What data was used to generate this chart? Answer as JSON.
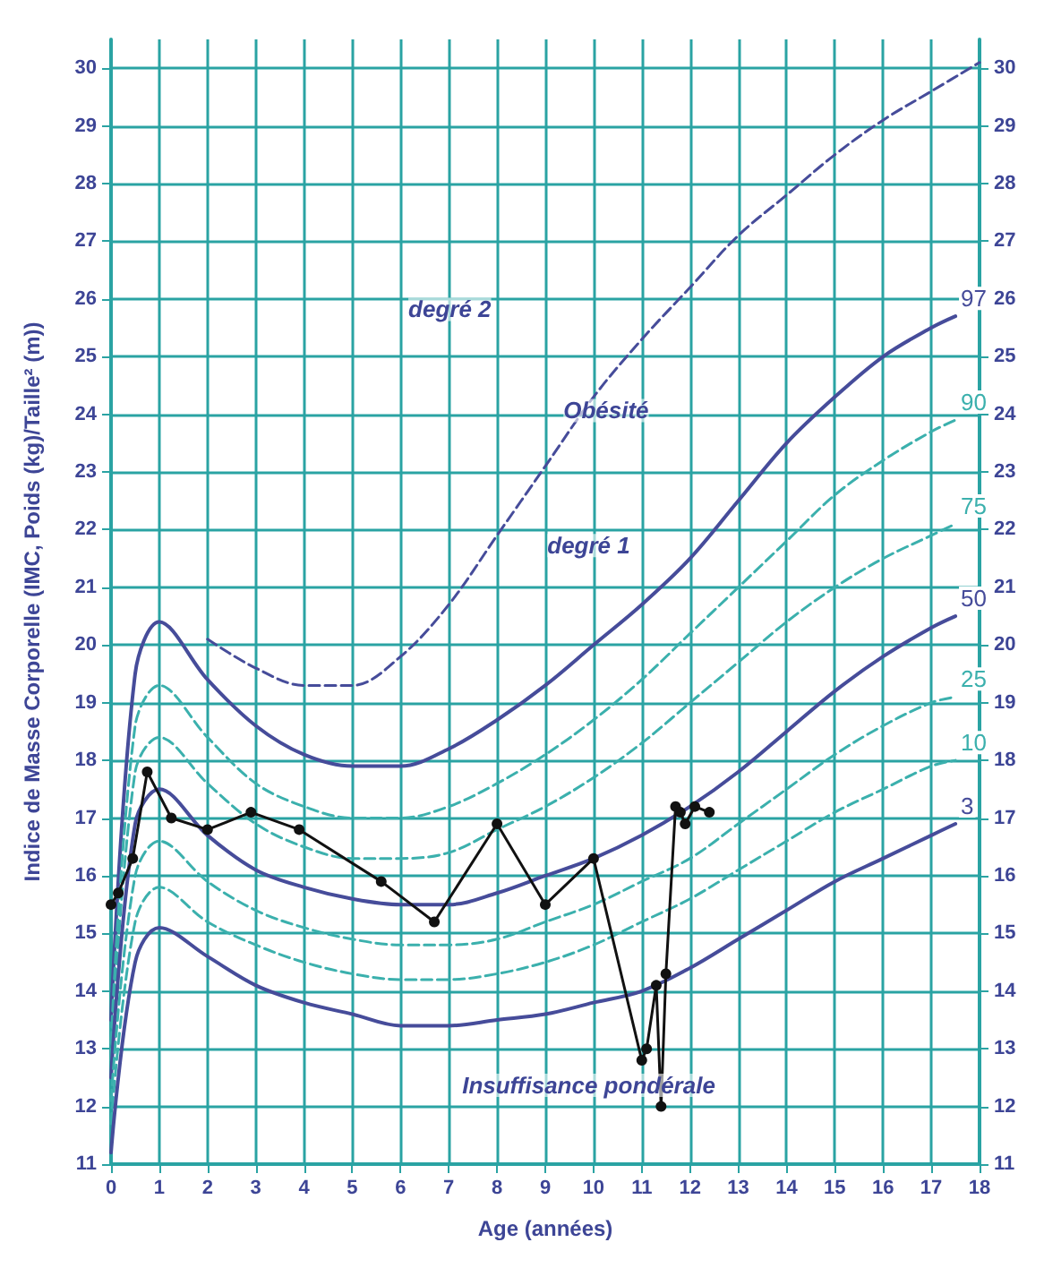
{
  "chart_data": {
    "type": "line",
    "xlabel": "Age (années)",
    "ylabel": "Indice de Masse Corporelle (IMC, Poids (kg)/Taille² (m))",
    "xlim": [
      0,
      18
    ],
    "xticks": [
      0,
      1,
      2,
      3,
      4,
      5,
      6,
      7,
      8,
      9,
      10,
      11,
      12,
      13,
      14,
      15,
      16,
      17,
      18
    ],
    "ylim": [
      11,
      30.5
    ],
    "yticks": [
      11,
      12,
      13,
      14,
      15,
      16,
      17,
      18,
      19,
      20,
      21,
      22,
      23,
      24,
      25,
      26,
      27,
      28,
      29,
      30
    ],
    "y2lim": [
      11,
      30.5
    ],
    "y2ticks": [
      11,
      12,
      13,
      14,
      15,
      16,
      17,
      18,
      19,
      20,
      21,
      22,
      23,
      24,
      25,
      26,
      27,
      28,
      29,
      30
    ],
    "grid": true,
    "marker": "none",
    "annotations": [
      "degré 2",
      "Obésité",
      "degré 1",
      "Insuffisance pondérale"
    ],
    "series": [
      {
        "name": "97",
        "color": "#464c9a",
        "line_style": "solid",
        "x": [
          0,
          0.5,
          1,
          2,
          3,
          4,
          5,
          6,
          7,
          8,
          9,
          10,
          11,
          12,
          13,
          14,
          15,
          16,
          17,
          17.5
        ],
        "values": [
          13.5,
          19.5,
          20.4,
          19.4,
          18.6,
          18.1,
          17.9,
          17.9,
          18.2,
          18.7,
          19.3,
          20.0,
          20.7,
          21.5,
          22.5,
          23.5,
          24.3,
          25.0,
          25.5,
          25.7
        ]
      },
      {
        "name": "90",
        "color": "#3bb0ad",
        "line_style": "dashed",
        "x": [
          0,
          0.5,
          1,
          2,
          3,
          4,
          5,
          6,
          7,
          8,
          9,
          10,
          11,
          12,
          13,
          14,
          15,
          16,
          17,
          17.5
        ],
        "values": [
          13.1,
          18.6,
          19.3,
          18.4,
          17.6,
          17.2,
          17.0,
          17.0,
          17.2,
          17.6,
          18.1,
          18.7,
          19.4,
          20.2,
          21.0,
          21.8,
          22.6,
          23.2,
          23.7,
          23.9
        ]
      },
      {
        "name": "75",
        "color": "#3bb0ad",
        "line_style": "dashed",
        "x": [
          0,
          0.5,
          1,
          2,
          3,
          4,
          5,
          6,
          7,
          8,
          9,
          10,
          11,
          12,
          13,
          14,
          15,
          16,
          17,
          17.5
        ],
        "values": [
          12.8,
          17.8,
          18.4,
          17.6,
          16.9,
          16.5,
          16.3,
          16.3,
          16.4,
          16.8,
          17.2,
          17.7,
          18.3,
          19.0,
          19.7,
          20.4,
          21.0,
          21.5,
          21.9,
          22.1
        ]
      },
      {
        "name": "50",
        "color": "#464c9a",
        "line_style": "solid",
        "x": [
          0,
          0.5,
          1,
          2,
          3,
          4,
          5,
          6,
          7,
          8,
          9,
          10,
          11,
          12,
          13,
          14,
          15,
          16,
          17,
          17.5
        ],
        "values": [
          12.5,
          16.9,
          17.5,
          16.7,
          16.1,
          15.8,
          15.6,
          15.5,
          15.5,
          15.7,
          16.0,
          16.3,
          16.7,
          17.2,
          17.8,
          18.5,
          19.2,
          19.8,
          20.3,
          20.5
        ]
      },
      {
        "name": "25",
        "color": "#3bb0ad",
        "line_style": "dashed",
        "x": [
          0,
          0.5,
          1,
          2,
          3,
          4,
          5,
          6,
          7,
          8,
          9,
          10,
          11,
          12,
          13,
          14,
          15,
          16,
          17,
          17.5
        ],
        "values": [
          12.1,
          16.0,
          16.6,
          15.9,
          15.4,
          15.1,
          14.9,
          14.8,
          14.8,
          14.9,
          15.2,
          15.5,
          15.9,
          16.3,
          16.9,
          17.5,
          18.1,
          18.6,
          19.0,
          19.1
        ]
      },
      {
        "name": "10",
        "color": "#3bb0ad",
        "line_style": "dashed",
        "x": [
          0,
          0.5,
          1,
          2,
          3,
          4,
          5,
          6,
          7,
          8,
          9,
          10,
          11,
          12,
          13,
          14,
          15,
          16,
          17,
          17.5
        ],
        "values": [
          11.7,
          15.2,
          15.8,
          15.2,
          14.8,
          14.5,
          14.3,
          14.2,
          14.2,
          14.3,
          14.5,
          14.8,
          15.2,
          15.6,
          16.1,
          16.6,
          17.1,
          17.5,
          17.9,
          18.0
        ]
      },
      {
        "name": "3",
        "color": "#464c9a",
        "line_style": "solid",
        "x": [
          0,
          0.5,
          1,
          2,
          3,
          4,
          5,
          6,
          7,
          8,
          9,
          10,
          11,
          12,
          13,
          14,
          15,
          16,
          17,
          17.5
        ],
        "values": [
          11.2,
          14.5,
          15.1,
          14.6,
          14.1,
          13.8,
          13.6,
          13.4,
          13.4,
          13.5,
          13.6,
          13.8,
          14.0,
          14.4,
          14.9,
          15.4,
          15.9,
          16.3,
          16.7,
          16.9
        ]
      },
      {
        "color": "#464c9a",
        "line_style": "dashed",
        "x": [
          2,
          3,
          4,
          5,
          6,
          7,
          8,
          9,
          10,
          11,
          12,
          13,
          14,
          15,
          16,
          17,
          18
        ],
        "values": [
          20.1,
          19.6,
          19.3,
          19.3,
          19.8,
          20.7,
          21.9,
          23.1,
          24.3,
          25.3,
          26.2,
          27.1,
          27.8,
          28.5,
          29.1,
          29.6,
          30.1
        ]
      },
      {
        "color": "#111111",
        "line_style": "solid",
        "marker": "circle",
        "x": [
          0,
          0.15,
          0.45,
          0.75,
          1.25,
          2,
          2.9,
          3.9,
          5.6,
          6.7,
          8,
          9,
          10,
          11,
          11.1,
          11.3,
          11.4,
          11.5,
          11.7,
          11.8,
          11.9,
          12.1,
          12.4
        ],
        "values": [
          15.5,
          15.7,
          16.3,
          17.8,
          17.0,
          16.8,
          17.1,
          16.8,
          15.9,
          15.2,
          16.9,
          15.5,
          16.3,
          12.8,
          13.0,
          14.1,
          12.0,
          14.3,
          17.2,
          17.1,
          16.9,
          17.2,
          17.1
        ]
      }
    ]
  }
}
